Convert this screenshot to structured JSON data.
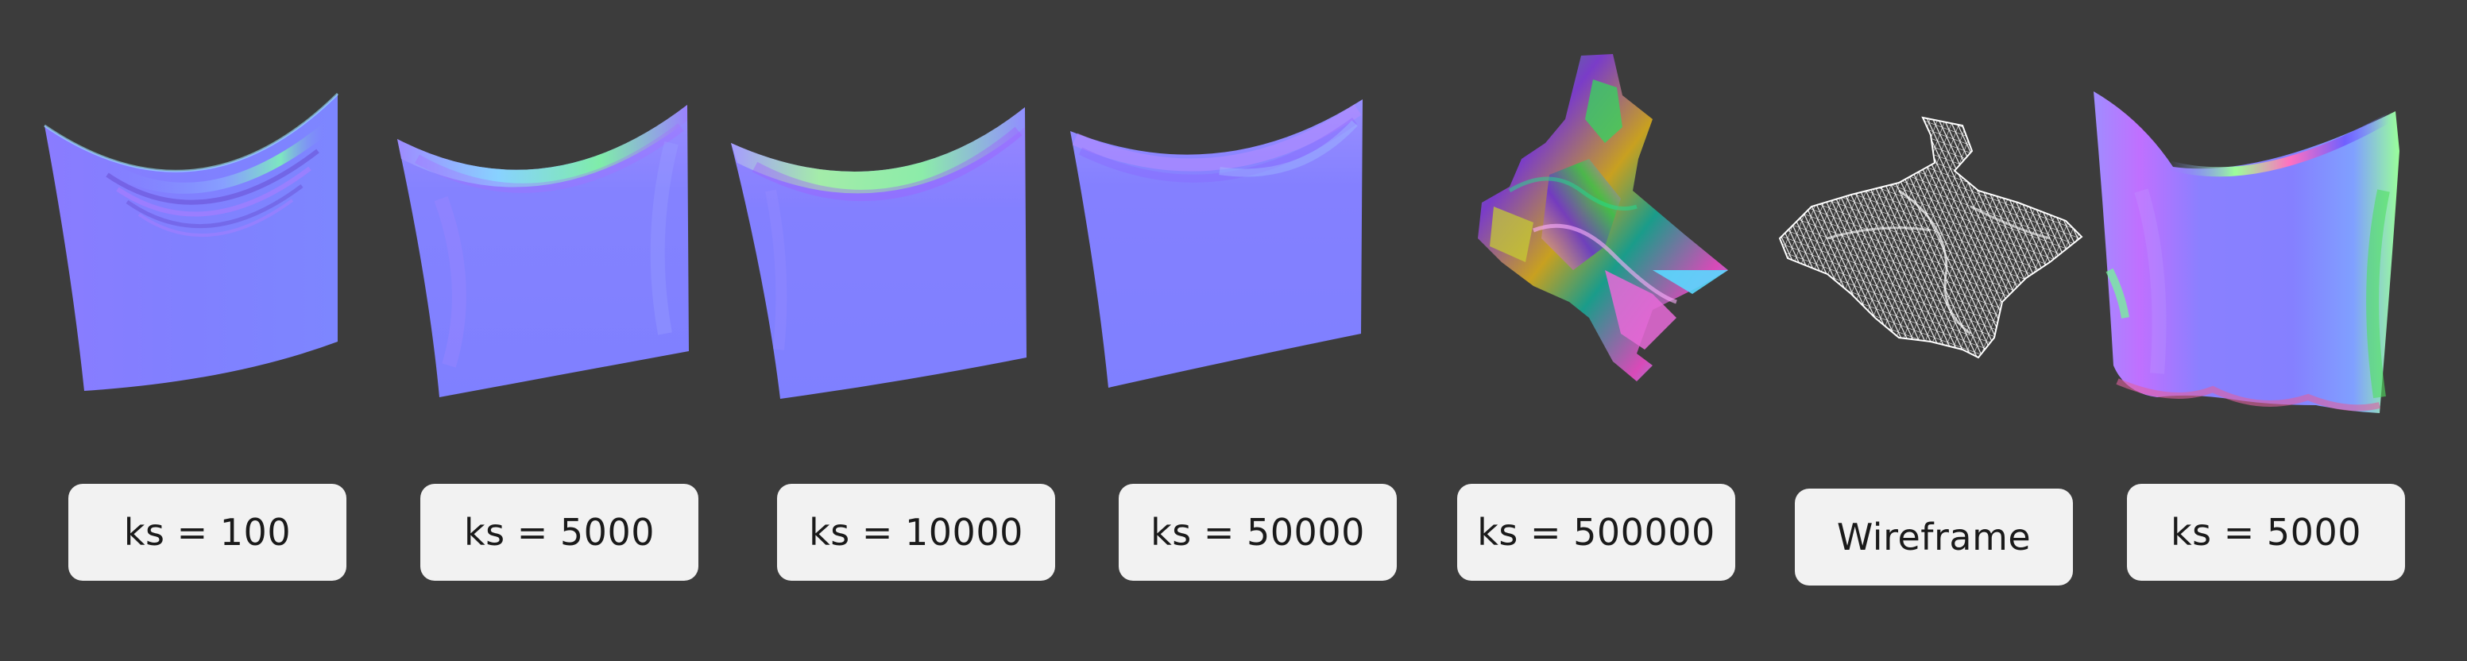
{
  "panels": [
    {
      "label": "ks = 100",
      "render": "cloth-normal-map"
    },
    {
      "label": "ks = 5000",
      "render": "cloth-normal-map"
    },
    {
      "label": "ks = 10000",
      "render": "cloth-normal-map"
    },
    {
      "label": "ks = 50000",
      "render": "cloth-normal-map"
    },
    {
      "label": "ks = 500000",
      "render": "cloth-normal-map-unstable"
    },
    {
      "label": "Wireframe",
      "render": "cloth-wireframe"
    },
    {
      "label": "ks = 5000",
      "render": "cloth-normal-map-draped"
    }
  ],
  "colors": {
    "background": "#3c3c3c",
    "label_background": "#f2f2f2",
    "label_text": "#1a1a1a",
    "normal_base": "#8080ff"
  }
}
